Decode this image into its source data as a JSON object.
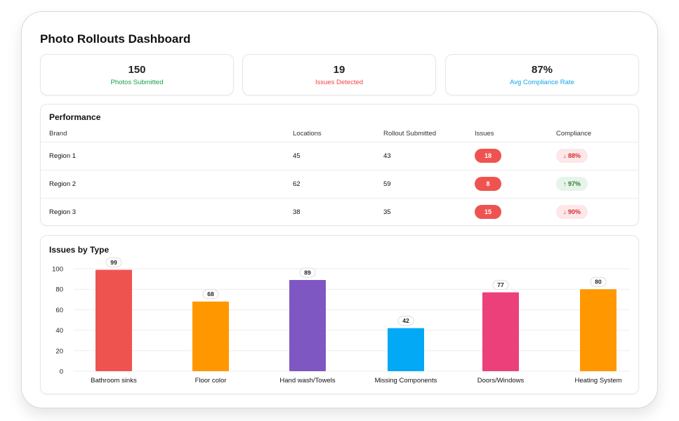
{
  "page_title": "Photo Rollouts Dashboard",
  "stats": [
    {
      "value": "150",
      "label": "Photos Submitted",
      "color": "#16a34a"
    },
    {
      "value": "19",
      "label": "Issues Detected",
      "color": "#ef4444"
    },
    {
      "value": "87%",
      "label": "Avg Compliance Rate",
      "color": "#0ea5e9"
    }
  ],
  "performance": {
    "title": "Performance",
    "columns": [
      "Brand",
      "Locations",
      "Rollout Submitted",
      "Issues",
      "Compliance"
    ],
    "rows": [
      {
        "brand": "Region 1",
        "locations": "45",
        "submitted": "43",
        "issues": "18",
        "compliance": "↓ 88%",
        "trend": "down"
      },
      {
        "brand": "Region 2",
        "locations": "62",
        "submitted": "59",
        "issues": "8",
        "compliance": "↑ 97%",
        "trend": "up"
      },
      {
        "brand": "Region 3",
        "locations": "38",
        "submitted": "35",
        "issues": "15",
        "compliance": "↓ 90%",
        "trend": "down"
      }
    ]
  },
  "issues_panel": {
    "title": "Issues by Type"
  },
  "chart_data": {
    "type": "bar",
    "title": "Issues by Type",
    "categories": [
      "Bathroom sinks",
      "Floor color",
      "Hand wash/Towels",
      "Missing Components",
      "Doors/Windows",
      "Heating System"
    ],
    "values": [
      99,
      68,
      89,
      42,
      77,
      80
    ],
    "colors": [
      "#ef5350",
      "#ff9800",
      "#7e57c2",
      "#03a9f4",
      "#ec407a",
      "#ff9800"
    ],
    "yticks": [
      0,
      20,
      40,
      60,
      80,
      100
    ],
    "ylim": [
      0,
      100
    ],
    "grid": true,
    "xlabel": "",
    "ylabel": ""
  }
}
